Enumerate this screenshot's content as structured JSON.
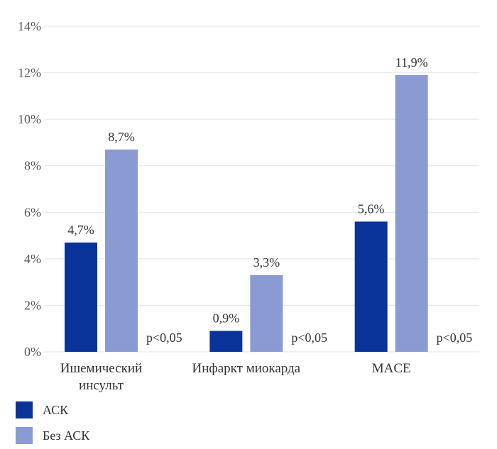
{
  "chart_data": {
    "type": "bar",
    "categories": [
      "Ишемический инсульт",
      "Инфаркт миокарда",
      "MACE"
    ],
    "category_lines": [
      [
        "Ишемический",
        "инсульт"
      ],
      [
        "Инфаркт миокарда"
      ],
      [
        "MACE"
      ]
    ],
    "series": [
      {
        "name": "АСК",
        "values": [
          4.7,
          0.9,
          5.6
        ],
        "labels": [
          "4,7%",
          "0,9%",
          "5,6%"
        ],
        "color": "#0a3399"
      },
      {
        "name": "Без АСК",
        "values": [
          8.7,
          3.3,
          11.9
        ],
        "labels": [
          "8,7%",
          "3,3%",
          "11,9%"
        ],
        "color": "#8a9bd4"
      }
    ],
    "annotations": [
      "p<0,05",
      "p<0,05",
      "p<0,05"
    ],
    "ylim": [
      0,
      14
    ],
    "yticks": [
      0,
      2,
      4,
      6,
      8,
      10,
      12,
      14
    ],
    "ytick_labels": [
      "0%",
      "2%",
      "4%",
      "6%",
      "8%",
      "10%",
      "12%",
      "14%"
    ],
    "grid": true,
    "legend_position": "bottom-left"
  },
  "legend": {
    "items": [
      {
        "label": "АСК",
        "color": "#0a3399"
      },
      {
        "label": "Без АСК",
        "color": "#8a9bd4"
      }
    ]
  }
}
